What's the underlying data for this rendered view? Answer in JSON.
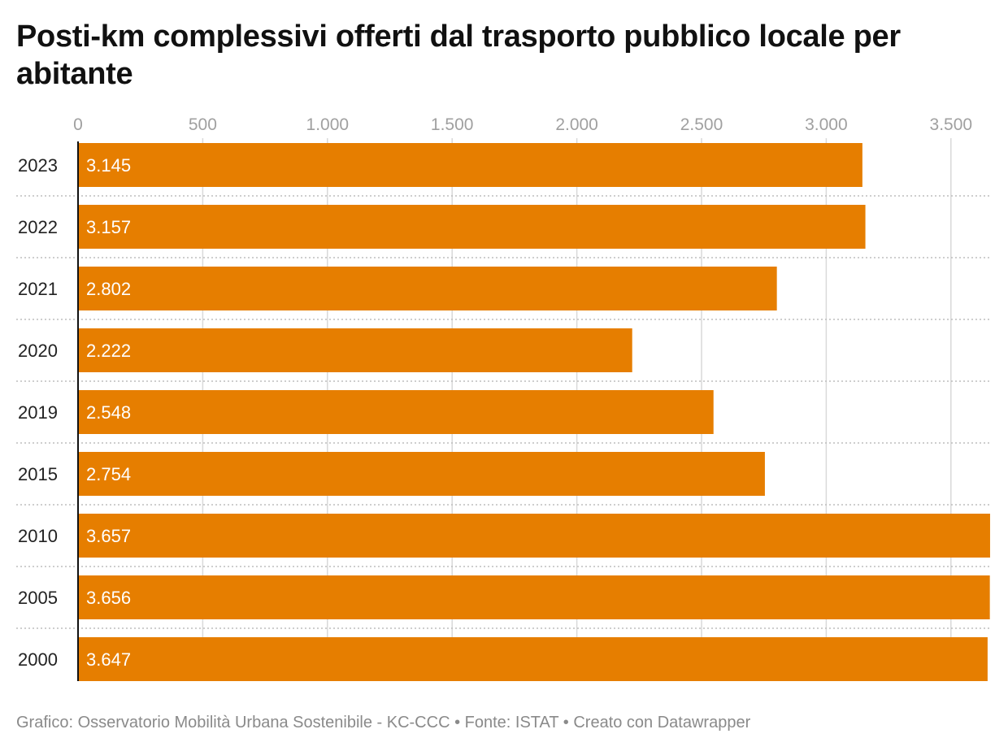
{
  "title": "Posti-km complessivi offerti dal trasporto pubblico locale per abitante",
  "footer": "Grafico: Osservatorio Mobilità Urbana Sostenibile - KC-CCC • Fonte: ISTAT • Creato con Datawrapper",
  "colors": {
    "bar": "#e67e00",
    "grid": "#d9d9d9",
    "tick_text": "#a0a0a0",
    "label_text": "#ffffff"
  },
  "chart_data": {
    "type": "bar",
    "orientation": "horizontal",
    "title": "Posti-km complessivi offerti dal trasporto pubblico locale per abitante",
    "categories": [
      "2023",
      "2022",
      "2021",
      "2020",
      "2019",
      "2015",
      "2010",
      "2005",
      "2000"
    ],
    "values": [
      3145,
      3157,
      2802,
      2222,
      2548,
      2754,
      3657,
      3656,
      3647
    ],
    "value_labels": [
      "3.145",
      "3.157",
      "2.802",
      "2.222",
      "2.548",
      "2.754",
      "3.657",
      "3.656",
      "3.647"
    ],
    "x_ticks": [
      0,
      500,
      1000,
      1500,
      2000,
      2500,
      3000,
      3500
    ],
    "x_tick_labels": [
      "0",
      "500",
      "1.000",
      "1.500",
      "2.000",
      "2.500",
      "3.000",
      "3.500"
    ],
    "xlim": [
      0,
      3650
    ],
    "grid": true,
    "xlabel": "",
    "ylabel": ""
  }
}
